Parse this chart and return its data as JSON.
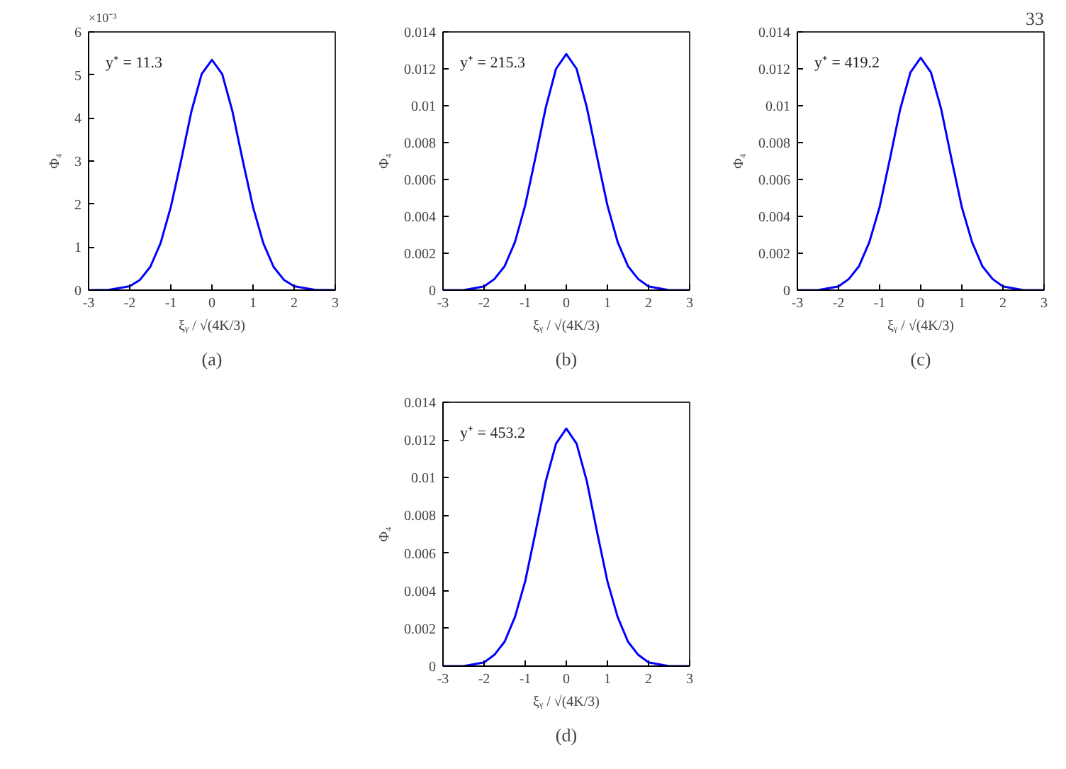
{
  "chart_data": [
    {
      "type": "line",
      "xlabel": "ξᵧ / √(4K/3)",
      "ylabel": "Φ₄",
      "annotations": [
        "y⁺ = 11.3",
        "(a)",
        "×10⁻³"
      ],
      "x": [
        -3,
        -2.5,
        -2,
        -1.75,
        -1.5,
        -1.25,
        -1,
        -0.75,
        -0.5,
        -0.25,
        0,
        0.25,
        0.5,
        0.75,
        1,
        1.25,
        1.5,
        1.75,
        2,
        2.5,
        3
      ],
      "series": [
        {
          "color": "#0000ff",
          "values": [
            0,
            0.01,
            0.09,
            0.24,
            0.54,
            1.09,
            1.93,
            3.01,
            4.15,
            5.02,
            5.35,
            5.02,
            4.15,
            3.01,
            1.93,
            1.09,
            0.54,
            0.24,
            0.09,
            0.01,
            0
          ]
        }
      ],
      "xlim": [
        -3,
        3
      ],
      "xticks": [
        -3,
        -2,
        -1,
        0,
        1,
        2,
        3
      ],
      "ylim": [
        0,
        6
      ],
      "yticks": [
        0,
        1,
        2,
        3,
        4,
        5,
        6
      ],
      "grid": false,
      "line_style": "solid",
      "marker": "none"
    },
    {
      "type": "line",
      "xlabel": "ξᵧ / √(4K/3)",
      "ylabel": "Φ₄",
      "annotations": [
        "y⁺ = 215.3",
        "(b)"
      ],
      "x": [
        -3,
        -2.5,
        -2,
        -1.75,
        -1.5,
        -1.25,
        -1,
        -0.75,
        -0.5,
        -0.25,
        0,
        0.25,
        0.5,
        0.75,
        1,
        1.25,
        1.5,
        1.75,
        2,
        2.5,
        3
      ],
      "series": [
        {
          "color": "#0000ff",
          "values": [
            0,
            0,
            0.0002,
            0.0006,
            0.0013,
            0.0026,
            0.0046,
            0.0072,
            0.0099,
            0.012,
            0.0128,
            0.012,
            0.0099,
            0.0072,
            0.0046,
            0.0026,
            0.0013,
            0.0006,
            0.0002,
            0,
            0
          ]
        }
      ],
      "xlim": [
        -3,
        3
      ],
      "xticks": [
        -3,
        -2,
        -1,
        0,
        1,
        2,
        3
      ],
      "ylim": [
        0,
        0.014
      ],
      "yticks": [
        0,
        0.002,
        0.004,
        0.006,
        0.008,
        0.01,
        0.012,
        0.014
      ],
      "grid": false,
      "line_style": "solid",
      "marker": "none"
    },
    {
      "type": "line",
      "xlabel": "ξᵧ / √(4K/3)",
      "ylabel": "Φ₄",
      "annotations": [
        "y⁺ = 419.2",
        "(c)",
        "33"
      ],
      "x": [
        -3,
        -2.5,
        -2,
        -1.75,
        -1.5,
        -1.25,
        -1,
        -0.75,
        -0.5,
        -0.25,
        0,
        0.25,
        0.5,
        0.75,
        1,
        1.25,
        1.5,
        1.75,
        2,
        2.5,
        3
      ],
      "series": [
        {
          "color": "#0000ff",
          "values": [
            0,
            0,
            0.0002,
            0.0006,
            0.0013,
            0.0026,
            0.0045,
            0.0071,
            0.0098,
            0.0118,
            0.0126,
            0.0118,
            0.0098,
            0.0071,
            0.0045,
            0.0026,
            0.0013,
            0.0006,
            0.0002,
            0,
            0
          ]
        }
      ],
      "xlim": [
        -3,
        3
      ],
      "xticks": [
        -3,
        -2,
        -1,
        0,
        1,
        2,
        3
      ],
      "ylim": [
        0,
        0.014
      ],
      "yticks": [
        0,
        0.002,
        0.004,
        0.006,
        0.008,
        0.01,
        0.012,
        0.014
      ],
      "grid": false,
      "line_style": "solid",
      "marker": "none"
    },
    {
      "type": "line",
      "xlabel": "ξᵧ / √(4K/3)",
      "ylabel": "Φ₄",
      "annotations": [
        "y⁺ = 453.2",
        "(d)"
      ],
      "x": [
        -3,
        -2.5,
        -2,
        -1.75,
        -1.5,
        -1.25,
        -1,
        -0.75,
        -0.5,
        -0.25,
        0,
        0.25,
        0.5,
        0.75,
        1,
        1.25,
        1.5,
        1.75,
        2,
        2.5,
        3
      ],
      "series": [
        {
          "color": "#0000ff",
          "values": [
            0,
            0,
            0.0002,
            0.0006,
            0.0013,
            0.0026,
            0.0045,
            0.0071,
            0.0098,
            0.0118,
            0.0126,
            0.0118,
            0.0098,
            0.0071,
            0.0045,
            0.0026,
            0.0013,
            0.0006,
            0.0002,
            0,
            0
          ]
        }
      ],
      "xlim": [
        -3,
        3
      ],
      "xticks": [
        -3,
        -2,
        -1,
        0,
        1,
        2,
        3
      ],
      "ylim": [
        0,
        0.014
      ],
      "yticks": [
        0,
        0.002,
        0.004,
        0.006,
        0.008,
        0.01,
        0.012,
        0.014
      ],
      "grid": false,
      "line_style": "solid",
      "marker": "none"
    }
  ]
}
